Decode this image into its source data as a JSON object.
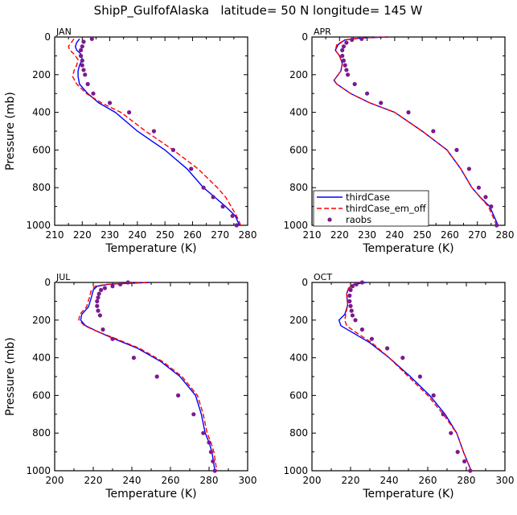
{
  "title": "ShipP_GulfofAlaska   latitude= 50 N longitude= 145 W",
  "legend_panel": "APR",
  "chart_data": [
    {
      "type": "line",
      "panel_label": "JAN",
      "xlabel": "Temperature (K)",
      "ylabel": "Pressure (mb)",
      "xlim": [
        210,
        280
      ],
      "xticks": [
        210,
        220,
        230,
        240,
        250,
        260,
        270,
        280
      ],
      "ylim": [
        1000,
        0
      ],
      "yticks": [
        0,
        200,
        400,
        600,
        800,
        1000
      ],
      "y_inverted": true,
      "series": [
        {
          "name": "thirdCase",
          "style": "solid",
          "color": "#0000ff",
          "x": [
            219,
            218,
            217.5,
            218,
            219.5,
            220,
            219,
            218.5,
            218.5,
            219,
            222,
            226,
            232,
            240,
            250,
            258,
            264,
            268,
            272,
            275.5,
            277
          ],
          "y": [
            10,
            30,
            50,
            70,
            90,
            120,
            150,
            180,
            210,
            250,
            300,
            350,
            400,
            500,
            600,
            700,
            800,
            850,
            900,
            950,
            1000
          ]
        },
        {
          "name": "thirdCase_em_off",
          "style": "dashed",
          "color": "#ff0000",
          "x": [
            217,
            216,
            215,
            215.5,
            217,
            218.5,
            218,
            217,
            216.5,
            218,
            221.5,
            227,
            234,
            243,
            253,
            262,
            269,
            272,
            274,
            276,
            277.5
          ],
          "y": [
            10,
            30,
            50,
            70,
            90,
            120,
            150,
            180,
            210,
            250,
            300,
            350,
            400,
            500,
            600,
            700,
            800,
            850,
            900,
            950,
            1000
          ]
        },
        {
          "name": "raobs",
          "style": "dots",
          "color": "#7b1a8f",
          "x": [
            223.5,
            220.5,
            220,
            219.5,
            219.5,
            220,
            220,
            220.5,
            221,
            222,
            224,
            230,
            237,
            246,
            253,
            259.5,
            264,
            267.5,
            271,
            274.5,
            276
          ],
          "y": [
            10,
            25,
            50,
            70,
            100,
            125,
            150,
            175,
            200,
            250,
            300,
            350,
            400,
            500,
            600,
            700,
            800,
            850,
            900,
            950,
            1000
          ]
        }
      ]
    },
    {
      "type": "line",
      "panel_label": "APR",
      "xlabel": "Temperature (K)",
      "ylabel": "",
      "xlim": [
        210,
        280
      ],
      "xticks": [
        210,
        220,
        230,
        240,
        250,
        260,
        270,
        280
      ],
      "ylim": [
        1000,
        0
      ],
      "yticks": [
        0,
        200,
        400,
        600,
        800,
        1000
      ],
      "y_inverted": true,
      "series": [
        {
          "name": "thirdCase",
          "style": "solid",
          "color": "#0000ff",
          "x": [
            237.5,
            228,
            222,
            219.5,
            218.5,
            220,
            221,
            220.5,
            219,
            218,
            219,
            224,
            231,
            240,
            250,
            259,
            264,
            268,
            271,
            274.5,
            277.5
          ],
          "y": [
            0,
            5,
            15,
            40,
            70,
            100,
            140,
            180,
            210,
            230,
            250,
            300,
            350,
            400,
            500,
            600,
            700,
            800,
            850,
            900,
            1000
          ]
        },
        {
          "name": "thirdCase_em_off",
          "style": "dashed",
          "color": "#ff0000",
          "x": [
            237,
            227.5,
            222,
            219,
            218.5,
            220,
            221,
            220.5,
            219,
            218,
            219,
            224,
            231,
            240,
            250,
            259,
            264,
            268,
            271,
            274,
            277
          ],
          "y": [
            0,
            5,
            15,
            40,
            70,
            100,
            140,
            180,
            210,
            230,
            250,
            300,
            350,
            400,
            500,
            600,
            700,
            800,
            850,
            900,
            1000
          ]
        },
        {
          "name": "raobs",
          "style": "dots",
          "color": "#7b1a8f",
          "x": [
            228,
            224.5,
            222.5,
            221.5,
            221,
            221,
            221.5,
            222,
            222.5,
            223,
            225.5,
            230,
            235,
            245,
            254,
            262.5,
            267,
            270.5,
            273,
            275,
            277
          ],
          "y": [
            10,
            15,
            30,
            50,
            70,
            100,
            125,
            150,
            175,
            200,
            250,
            300,
            350,
            400,
            500,
            600,
            700,
            800,
            850,
            900,
            1000
          ]
        }
      ],
      "legend": {
        "position": "bottom-left",
        "entries": [
          "thirdCase",
          "thirdCase_em_off",
          "raobs"
        ]
      }
    },
    {
      "type": "line",
      "panel_label": "JUL",
      "xlabel": "Temperature (K)",
      "ylabel": "Pressure (mb)",
      "xlim": [
        200,
        300
      ],
      "xticks": [
        200,
        220,
        240,
        260,
        280,
        300
      ],
      "ylim": [
        1000,
        0
      ],
      "yticks": [
        0,
        200,
        400,
        600,
        800,
        1000
      ],
      "y_inverted": true,
      "series": [
        {
          "name": "thirdCase",
          "style": "solid",
          "color": "#0000ff",
          "x": [
            249,
            238,
            228,
            222,
            220,
            219,
            217.5,
            214,
            213.5,
            216,
            222,
            231,
            243,
            255,
            265,
            273,
            276,
            278,
            280,
            281.5,
            283
          ],
          "y": [
            0,
            5,
            10,
            20,
            40,
            80,
            130,
            170,
            200,
            230,
            260,
            300,
            350,
            420,
            500,
            600,
            700,
            800,
            850,
            900,
            1000
          ]
        },
        {
          "name": "thirdCase_em_off",
          "style": "dashed",
          "color": "#ff0000",
          "x": [
            248,
            237,
            227,
            221,
            219,
            218,
            216.5,
            213,
            212.5,
            215.5,
            222,
            232,
            244,
            256,
            266,
            274,
            277,
            279,
            281,
            282.5,
            284
          ],
          "y": [
            0,
            5,
            10,
            20,
            40,
            80,
            130,
            170,
            200,
            230,
            260,
            300,
            350,
            420,
            500,
            600,
            700,
            800,
            850,
            900,
            1000
          ]
        },
        {
          "name": "raobs",
          "style": "dots",
          "color": "#7b1a8f",
          "x": [
            238,
            234,
            230,
            226,
            224,
            223,
            222.5,
            222,
            222,
            222.5,
            223.5,
            225,
            230,
            241,
            253,
            264,
            272,
            277,
            280,
            281,
            282,
            283
          ],
          "y": [
            0,
            10,
            20,
            30,
            40,
            60,
            80,
            100,
            125,
            150,
            175,
            250,
            300,
            400,
            500,
            600,
            700,
            800,
            850,
            900,
            950,
            1000
          ]
        }
      ]
    },
    {
      "type": "line",
      "panel_label": "OCT",
      "xlabel": "Temperature (K)",
      "ylabel": "",
      "xlim": [
        200,
        300
      ],
      "xticks": [
        200,
        220,
        240,
        260,
        280,
        300
      ],
      "ylim": [
        1000,
        0
      ],
      "yticks": [
        0,
        200,
        400,
        600,
        800,
        1000
      ],
      "y_inverted": true,
      "series": [
        {
          "name": "thirdCase",
          "style": "solid",
          "color": "#0000ff",
          "x": [
            228,
            222,
            219,
            218,
            218.5,
            217,
            214,
            215,
            220,
            230,
            240,
            251,
            261,
            269,
            275,
            278.5,
            282.5
          ],
          "y": [
            0,
            10,
            30,
            60,
            120,
            170,
            200,
            230,
            260,
            320,
            400,
            500,
            600,
            700,
            800,
            900,
            1000
          ]
        },
        {
          "name": "thirdCase_em_off",
          "style": "dashed",
          "color": "#ff0000",
          "x": [
            227,
            221.5,
            219,
            218,
            218.5,
            217.5,
            217,
            218,
            222,
            231,
            240,
            250,
            260,
            268,
            275,
            278.5,
            282.5
          ],
          "y": [
            0,
            10,
            30,
            60,
            120,
            170,
            200,
            230,
            260,
            320,
            400,
            500,
            600,
            700,
            800,
            900,
            1000
          ]
        },
        {
          "name": "raobs",
          "style": "dots",
          "color": "#7b1a8f",
          "x": [
            226,
            223,
            221,
            220,
            219.5,
            219.5,
            220,
            220.5,
            221,
            222.5,
            226,
            231,
            239,
            247,
            256,
            263,
            268,
            272,
            275.5,
            279,
            282
          ],
          "y": [
            0,
            10,
            20,
            40,
            70,
            100,
            125,
            150,
            175,
            200,
            250,
            300,
            350,
            400,
            500,
            600,
            700,
            800,
            900,
            950,
            1000
          ]
        }
      ]
    }
  ]
}
